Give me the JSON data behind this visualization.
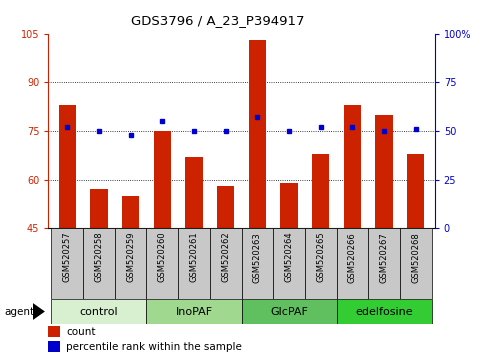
{
  "title": "GDS3796 / A_23_P394917",
  "samples": [
    "GSM520257",
    "GSM520258",
    "GSM520259",
    "GSM520260",
    "GSM520261",
    "GSM520262",
    "GSM520263",
    "GSM520264",
    "GSM520265",
    "GSM520266",
    "GSM520267",
    "GSM520268"
  ],
  "count_values": [
    83,
    57,
    55,
    75,
    67,
    58,
    103,
    59,
    68,
    83,
    80,
    68
  ],
  "percentile_values": [
    52,
    50,
    48,
    55,
    50,
    50,
    57,
    50,
    52,
    52,
    50,
    51
  ],
  "ylim_left": [
    45,
    105
  ],
  "ylim_right": [
    0,
    100
  ],
  "yticks_left": [
    45,
    60,
    75,
    90,
    105
  ],
  "yticks_right": [
    0,
    25,
    50,
    75,
    100
  ],
  "ytick_labels_right": [
    "0",
    "25",
    "50",
    "75",
    "100%"
  ],
  "bar_color": "#cc2200",
  "dot_color": "#0000cc",
  "bar_width": 0.55,
  "groups": [
    {
      "label": "control",
      "start": 0,
      "end": 3,
      "color": "#d8f0d0"
    },
    {
      "label": "InoPAF",
      "start": 3,
      "end": 6,
      "color": "#a0d890"
    },
    {
      "label": "GlcPAF",
      "start": 6,
      "end": 9,
      "color": "#60c060"
    },
    {
      "label": "edelfosine",
      "start": 9,
      "end": 12,
      "color": "#33cc33"
    }
  ],
  "grid_yticks": [
    60,
    75,
    90
  ],
  "agent_label": "agent",
  "legend_count_label": "count",
  "legend_pct_label": "percentile rank within the sample",
  "title_fontsize": 9.5,
  "tick_fontsize": 7,
  "sample_fontsize": 6,
  "group_label_fontsize": 8,
  "legend_fontsize": 7.5,
  "sample_box_color": "#c8c8c8"
}
